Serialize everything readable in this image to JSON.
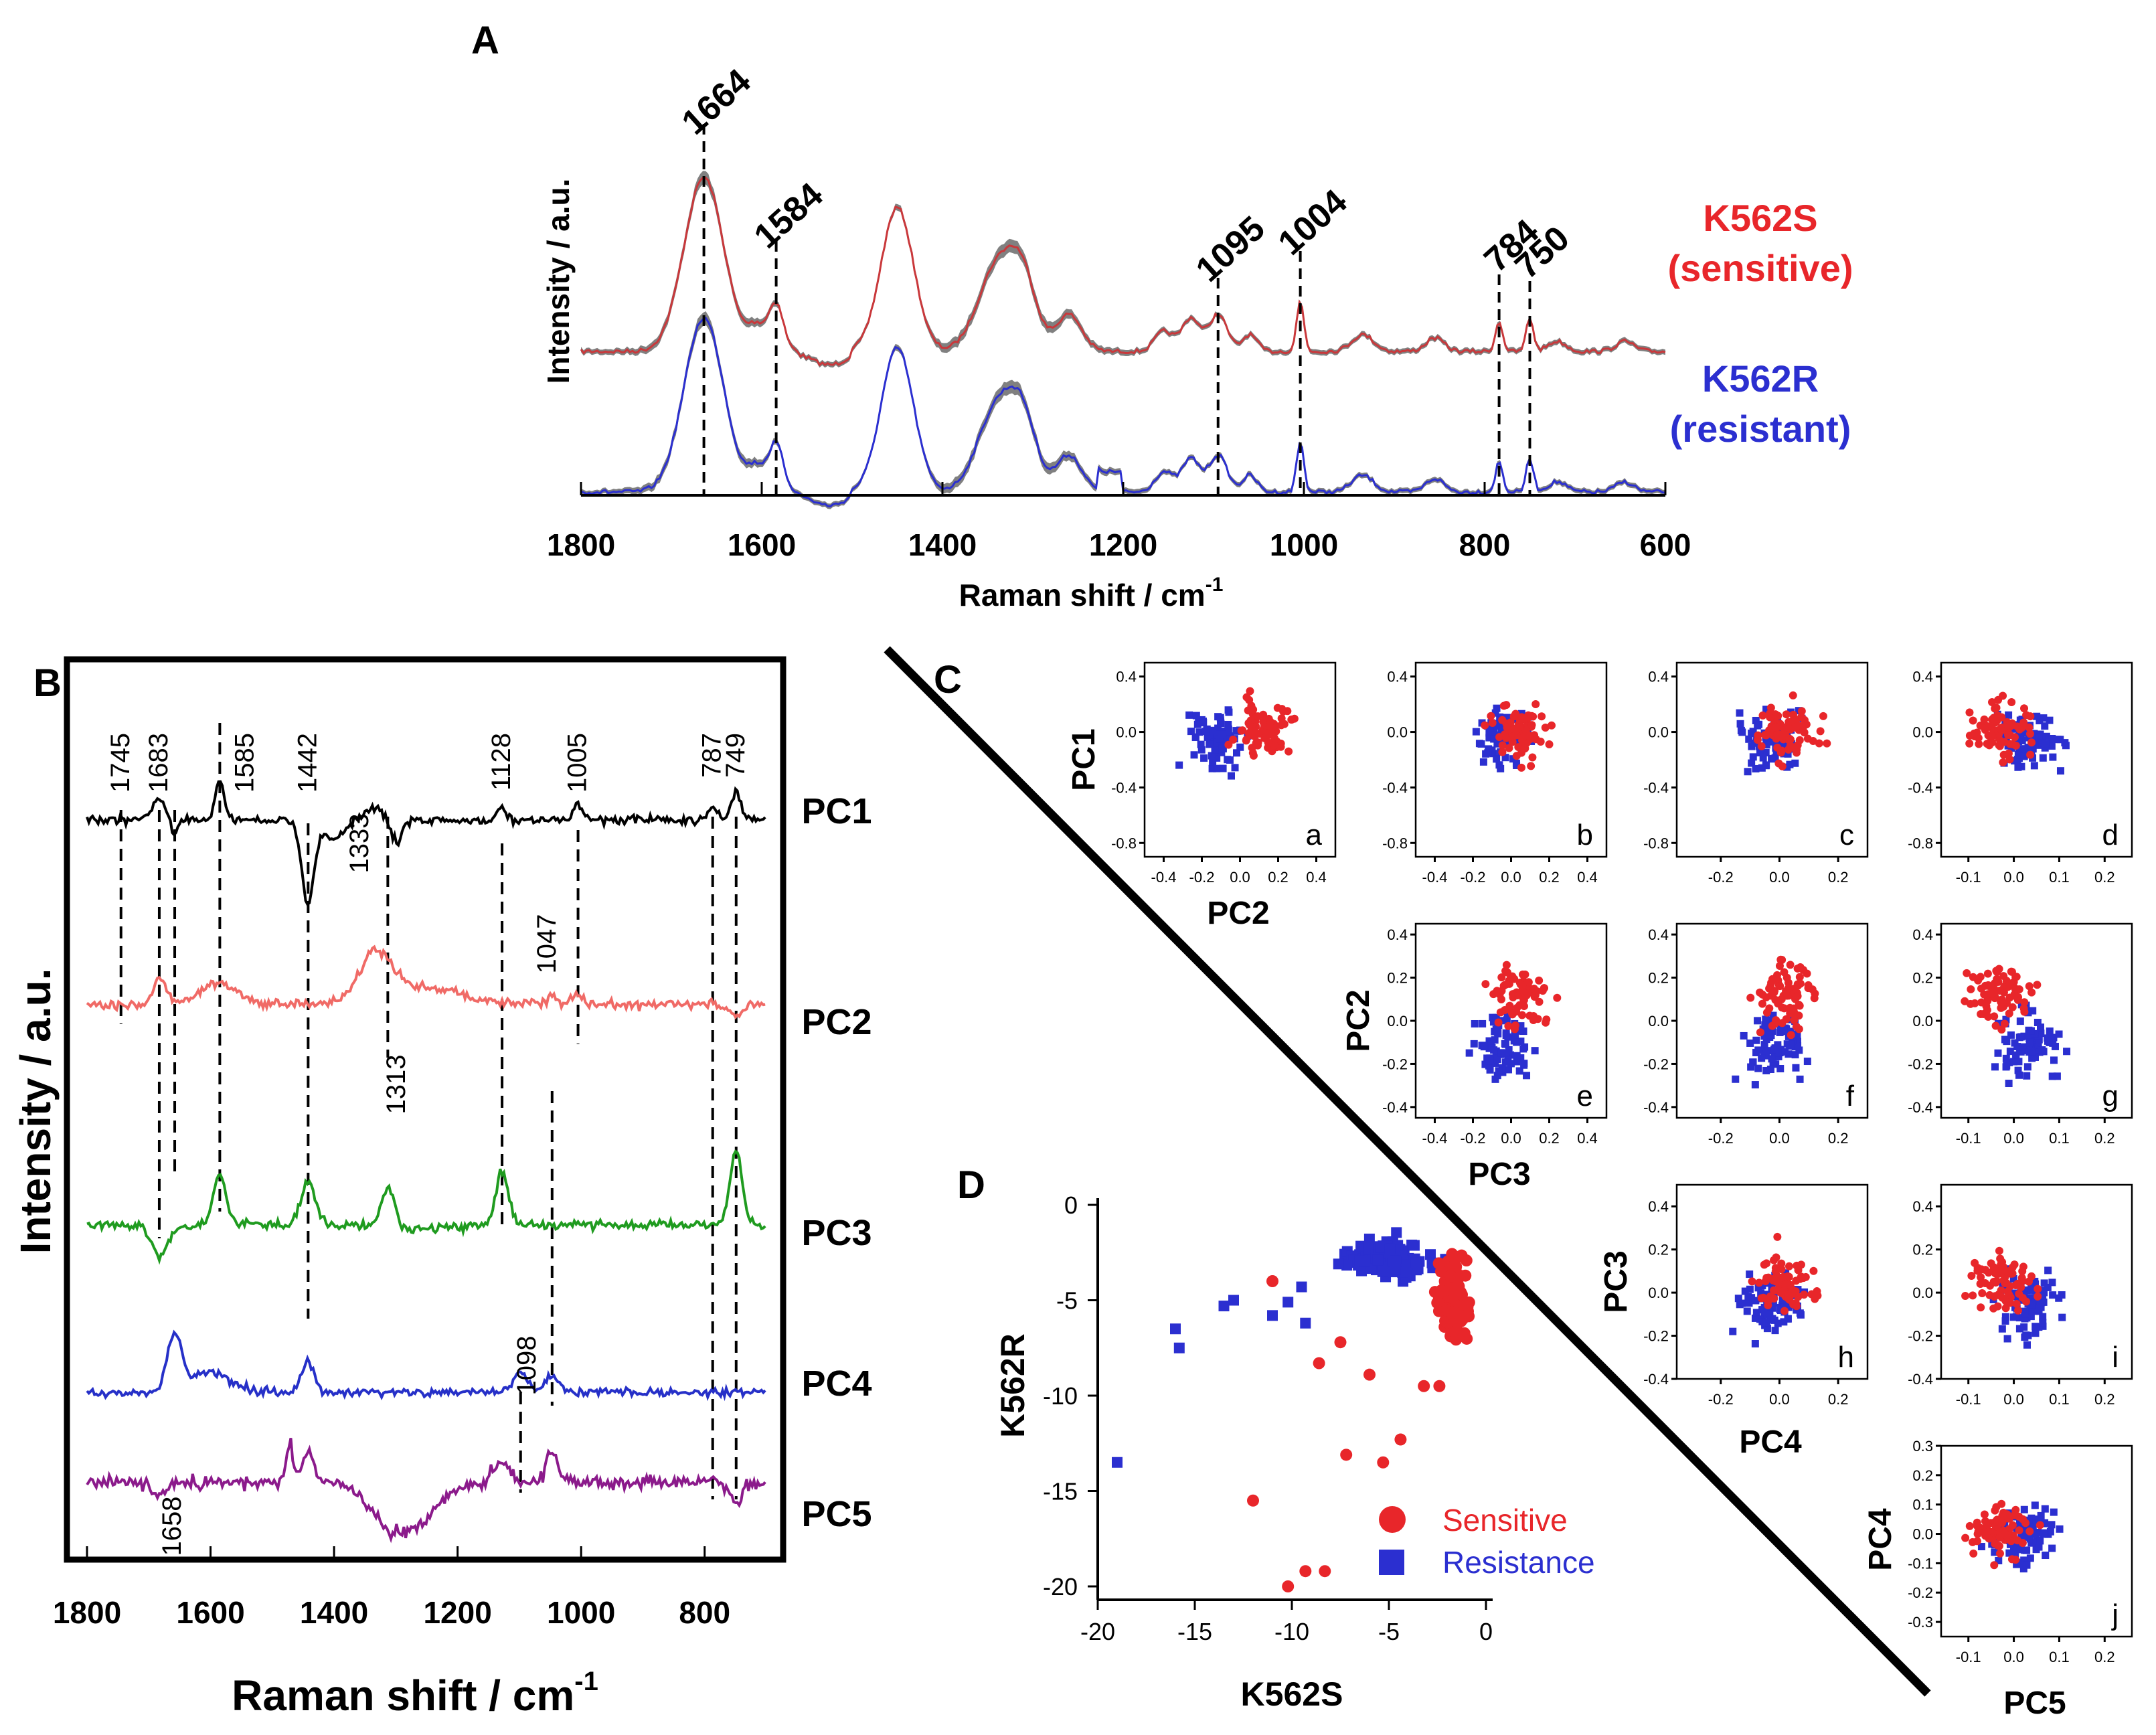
{
  "colors": {
    "red": "#e8262a",
    "blue": "#2b2fd0",
    "darkred": "#c9383b",
    "salmon": "#f06a66",
    "green": "#1f9b1f",
    "pcblue": "#2630c8",
    "purple": "#8b1a8b",
    "gray": "#555555"
  },
  "chart_data": [
    {
      "panel_label": "A",
      "type": "line",
      "xlabel": "Raman shift / cm",
      "xlabel_sup": "-1",
      "ylabel": "Intensity / a.u.",
      "xlim": [
        1800,
        600
      ],
      "xticks": [
        "1800",
        "1600",
        "1400",
        "1200",
        "1000",
        "800",
        "600"
      ],
      "series": [
        {
          "name_line1": "K562S",
          "name_line2": "(sensitive)",
          "color": "#c9383b",
          "band_color": "#555555"
        },
        {
          "name_line1": "K562R",
          "name_line2": "(resistant)",
          "color": "#2b2fd0",
          "band_color": "#555555"
        }
      ],
      "peak_labels": [
        "1664",
        "1584",
        "1095",
        "1004",
        "784",
        "750"
      ],
      "peaks": [
        1664,
        1584,
        1095,
        1004,
        784,
        750
      ]
    },
    {
      "panel_label": "B",
      "type": "line",
      "xlabel": "Raman shift / cm",
      "xlabel_sup": "-1",
      "ylabel": "Intensity / a.u.",
      "xlim": [
        1800,
        700
      ],
      "xticks": [
        "1800",
        "1600",
        "1400",
        "1200",
        "1000",
        "800"
      ],
      "series": [
        {
          "name": "PC1",
          "color": "#000000"
        },
        {
          "name": "PC2",
          "color": "#f06a66"
        },
        {
          "name": "PC3",
          "color": "#1f9b1f"
        },
        {
          "name": "PC4",
          "color": "#2630c8"
        },
        {
          "name": "PC5",
          "color": "#8b1a8b"
        }
      ],
      "top_labels": [
        "1745",
        "1683",
        "1585",
        "1442",
        "1128",
        "1005",
        "787",
        "749"
      ],
      "inner_labels": [
        "1333",
        "1047",
        "1313",
        "1098",
        "1658"
      ],
      "dashed_lines": [
        1745,
        1683,
        1658,
        1585,
        1442,
        1313,
        1128,
        1098,
        1047,
        1005,
        787,
        749
      ]
    },
    {
      "panel_label": "C",
      "type": "scatter",
      "row_labels": [
        "PC1",
        "PC2",
        "PC3",
        "PC4"
      ],
      "col_labels": [
        "PC2",
        "PC3",
        "PC4",
        "PC5"
      ],
      "subplot_letters": [
        "a",
        "b",
        "c",
        "d",
        "e",
        "f",
        "g",
        "h",
        "i",
        "j"
      ],
      "yticks_pc1": [
        "0.4",
        "0.0",
        "-0.4",
        "-0.8"
      ],
      "yticks_pc2": [
        "0.4",
        "0.2",
        "0.0",
        "-0.2",
        "-0.4"
      ],
      "yticks_pc3": [
        "0.4",
        "0.2",
        "0.0",
        "-0.2",
        "-0.4"
      ],
      "yticks_pc4": [
        "0.3",
        "0.2",
        "0.1",
        "0.0",
        "-0.1",
        "-0.2",
        "-0.3"
      ],
      "xticks_pc2": [
        "-0.4",
        "-0.2",
        "0.0",
        "0.2",
        "0.4"
      ],
      "xticks_pc3": [
        "-0.4",
        "-0.2",
        "0.0",
        "0.2",
        "0.4"
      ],
      "xticks_pc4": [
        "-0.2",
        "0.0",
        "0.2"
      ],
      "xticks_pc5": [
        "-0.1",
        "0.0",
        "0.1",
        "0.2"
      ]
    },
    {
      "panel_label": "D",
      "type": "scatter",
      "xlabel": "K562S",
      "ylabel": "K562R",
      "xlim": [
        -20,
        0
      ],
      "ylim": [
        -20,
        0
      ],
      "xticks": [
        "-20",
        "-15",
        "-10",
        "-5",
        "0"
      ],
      "yticks": [
        "0",
        "-5",
        "-10",
        "-15",
        "-20"
      ],
      "legend": [
        {
          "label": "Sensitive",
          "color": "#e8262a"
        },
        {
          "label": "Resistance",
          "color": "#2b2fd0"
        }
      ],
      "sensitive_points": [
        [
          -12,
          -15.5
        ],
        [
          -10.2,
          -20
        ],
        [
          -9.3,
          -19.2
        ],
        [
          -8.3,
          -19.2
        ],
        [
          -7.2,
          -13.1
        ],
        [
          -5.3,
          -13.5
        ],
        [
          -4.4,
          -12.3
        ],
        [
          -3.2,
          -9.5
        ],
        [
          -2.4,
          -9.5
        ],
        [
          -11,
          -4
        ],
        [
          -8.6,
          -8.3
        ],
        [
          -6,
          -8.9
        ],
        [
          -7.5,
          -7.2
        ]
      ],
      "resistance_points": [
        [
          -19,
          -13.5
        ],
        [
          -16,
          -6.5
        ],
        [
          -15.8,
          -7.5
        ],
        [
          -13.5,
          -5.3
        ],
        [
          -13,
          -5
        ],
        [
          -11,
          -5.8
        ],
        [
          -10.2,
          -5.1
        ],
        [
          -9.5,
          -4.3
        ],
        [
          -9.3,
          -6.2
        ]
      ]
    }
  ]
}
